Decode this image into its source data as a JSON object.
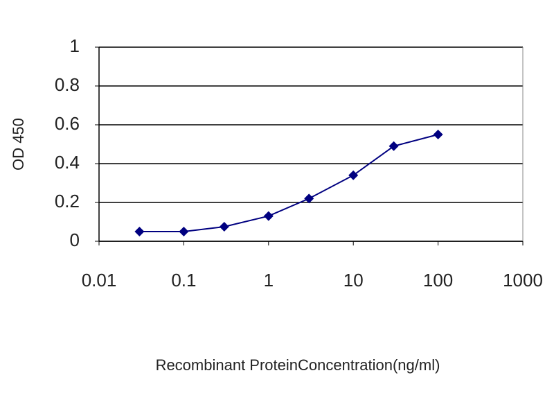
{
  "chart_data": {
    "type": "line",
    "xlabel": "Recombinant ProteinConcentration(ng/ml)",
    "ylabel": "OD 450",
    "x": [
      0.03,
      0.1,
      0.3,
      1,
      3,
      10,
      30,
      100
    ],
    "series": [
      {
        "color": "#000080",
        "values": [
          0.05,
          0.05,
          0.075,
          0.13,
          0.22,
          0.34,
          0.49,
          0.55
        ]
      }
    ],
    "xscale": "log",
    "xlim": [
      0.01,
      1000
    ],
    "xticks": [
      0.01,
      0.1,
      1,
      10,
      100,
      1000
    ],
    "ylim": [
      0,
      1
    ],
    "yticks": [
      0,
      0.2,
      0.4,
      0.6,
      0.8,
      1
    ],
    "grid": true
  }
}
